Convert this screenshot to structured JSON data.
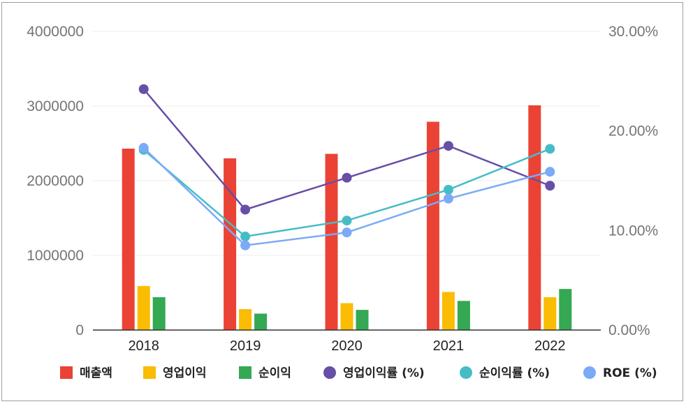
{
  "chart_data": {
    "type": "bar+line",
    "categories": [
      "2018",
      "2019",
      "2020",
      "2021",
      "2022"
    ],
    "y_left": {
      "ticks": [
        "0",
        "1000000",
        "2000000",
        "3000000",
        "4000000"
      ],
      "range": [
        0,
        4000000
      ]
    },
    "y_right": {
      "ticks": [
        "0.00%",
        "10.00%",
        "20.00%",
        "30.00%"
      ],
      "range": [
        0,
        30
      ]
    },
    "bar_series": [
      {
        "name": "매출액",
        "color": "#ea4335",
        "values": [
          2430000,
          2300000,
          2360000,
          2790000,
          3010000
        ]
      },
      {
        "name": "영업이익",
        "color": "#fbbc04",
        "values": [
          590000,
          280000,
          360000,
          510000,
          440000
        ]
      },
      {
        "name": "순이익",
        "color": "#34a853",
        "values": [
          440000,
          220000,
          270000,
          390000,
          550000
        ]
      }
    ],
    "line_series": [
      {
        "name": "영업이익률 (%)",
        "color": "#674ea7",
        "values": [
          24.2,
          12.1,
          15.3,
          18.5,
          14.5
        ]
      },
      {
        "name": "순이익률 (%)",
        "color": "#46bdc6",
        "values": [
          18.1,
          9.4,
          11.0,
          14.1,
          18.2
        ]
      },
      {
        "name": "ROE (%)",
        "color": "#7baaf7",
        "values": [
          18.3,
          8.5,
          9.8,
          13.2,
          15.9
        ]
      }
    ],
    "grid": true,
    "legend_position": "bottom"
  }
}
